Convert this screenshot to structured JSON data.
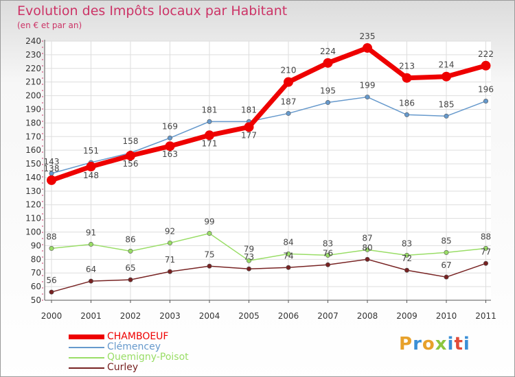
{
  "title": "Evolution des Impôts locaux par Habitant",
  "subtitle": "(en € et par an)",
  "colors": {
    "title": "#cc3366",
    "grid": "#dddddd",
    "axis": "#555555"
  },
  "logo": {
    "text": "Proxiti",
    "letters": [
      {
        "ch": "P",
        "color": "#e7a12b"
      },
      {
        "ch": "r",
        "color": "#3a8fd6"
      },
      {
        "ch": "o",
        "color": "#e7a12b"
      },
      {
        "ch": "x",
        "color": "#8cc63f"
      },
      {
        "ch": "i",
        "color": "#3a8fd6"
      },
      {
        "ch": "t",
        "color": "#e04b3a"
      },
      {
        "ch": "i",
        "color": "#3a8fd6"
      }
    ]
  },
  "chart_data": {
    "type": "line",
    "title": "Evolution des Impôts locaux par Habitant",
    "subtitle": "(en € et par an)",
    "xlabel": "",
    "ylabel": "",
    "categories": [
      "2000",
      "2001",
      "2002",
      "2003",
      "2004",
      "2005",
      "2006",
      "2007",
      "2008",
      "2009",
      "2010",
      "2011"
    ],
    "ylim": [
      50,
      240
    ],
    "yticks": [
      50,
      60,
      70,
      80,
      90,
      100,
      110,
      120,
      130,
      140,
      150,
      160,
      170,
      180,
      190,
      200,
      210,
      220,
      230,
      240
    ],
    "grid": true,
    "legend_position": "bottom-left",
    "series": [
      {
        "name": "CHAMBOEUF",
        "color": "#ee0000",
        "values": [
          138,
          148,
          156,
          163,
          171,
          177,
          210,
          224,
          235,
          213,
          214,
          222
        ]
      },
      {
        "name": "Clémencey",
        "color": "#6699cc",
        "values": [
          143,
          151,
          158,
          169,
          181,
          181,
          187,
          195,
          199,
          186,
          185,
          196
        ]
      },
      {
        "name": "Quemigny-Poisot",
        "color": "#99dd66",
        "values": [
          88,
          91,
          86,
          92,
          99,
          79,
          84,
          83,
          87,
          83,
          85,
          88
        ]
      },
      {
        "name": "Curley",
        "color": "#772222",
        "values": [
          56,
          64,
          65,
          71,
          75,
          73,
          74,
          76,
          80,
          72,
          67,
          77
        ]
      }
    ]
  }
}
